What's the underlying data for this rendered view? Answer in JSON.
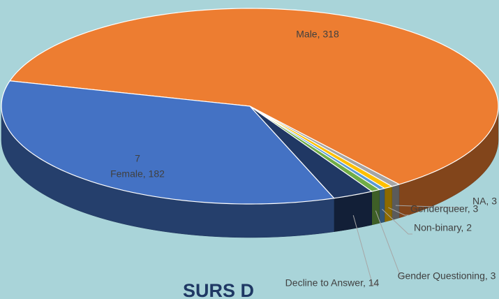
{
  "chart_data": {
    "type": "pie3d",
    "title": "SURS D",
    "annotations": [
      "7"
    ],
    "categories": [
      "Male",
      "NA",
      "Genderqueer",
      "Non-binary",
      "Gender Questioning",
      "Decline to Answer",
      "Female"
    ],
    "values": [
      318,
      3,
      3,
      2,
      3,
      14,
      182
    ],
    "value_labels": [
      "Male, 318",
      "NA, 3",
      "Genderqueer, 3",
      "Non-binary, 2",
      "Gender Questioning, 3",
      "Decline to Answer, 14",
      "Female, 182"
    ],
    "colors": [
      "#ed7d31",
      "#a5a5a5",
      "#ffc000",
      "#5b9bd5",
      "#70ad47",
      "#203864",
      "#4472c4"
    ]
  }
}
